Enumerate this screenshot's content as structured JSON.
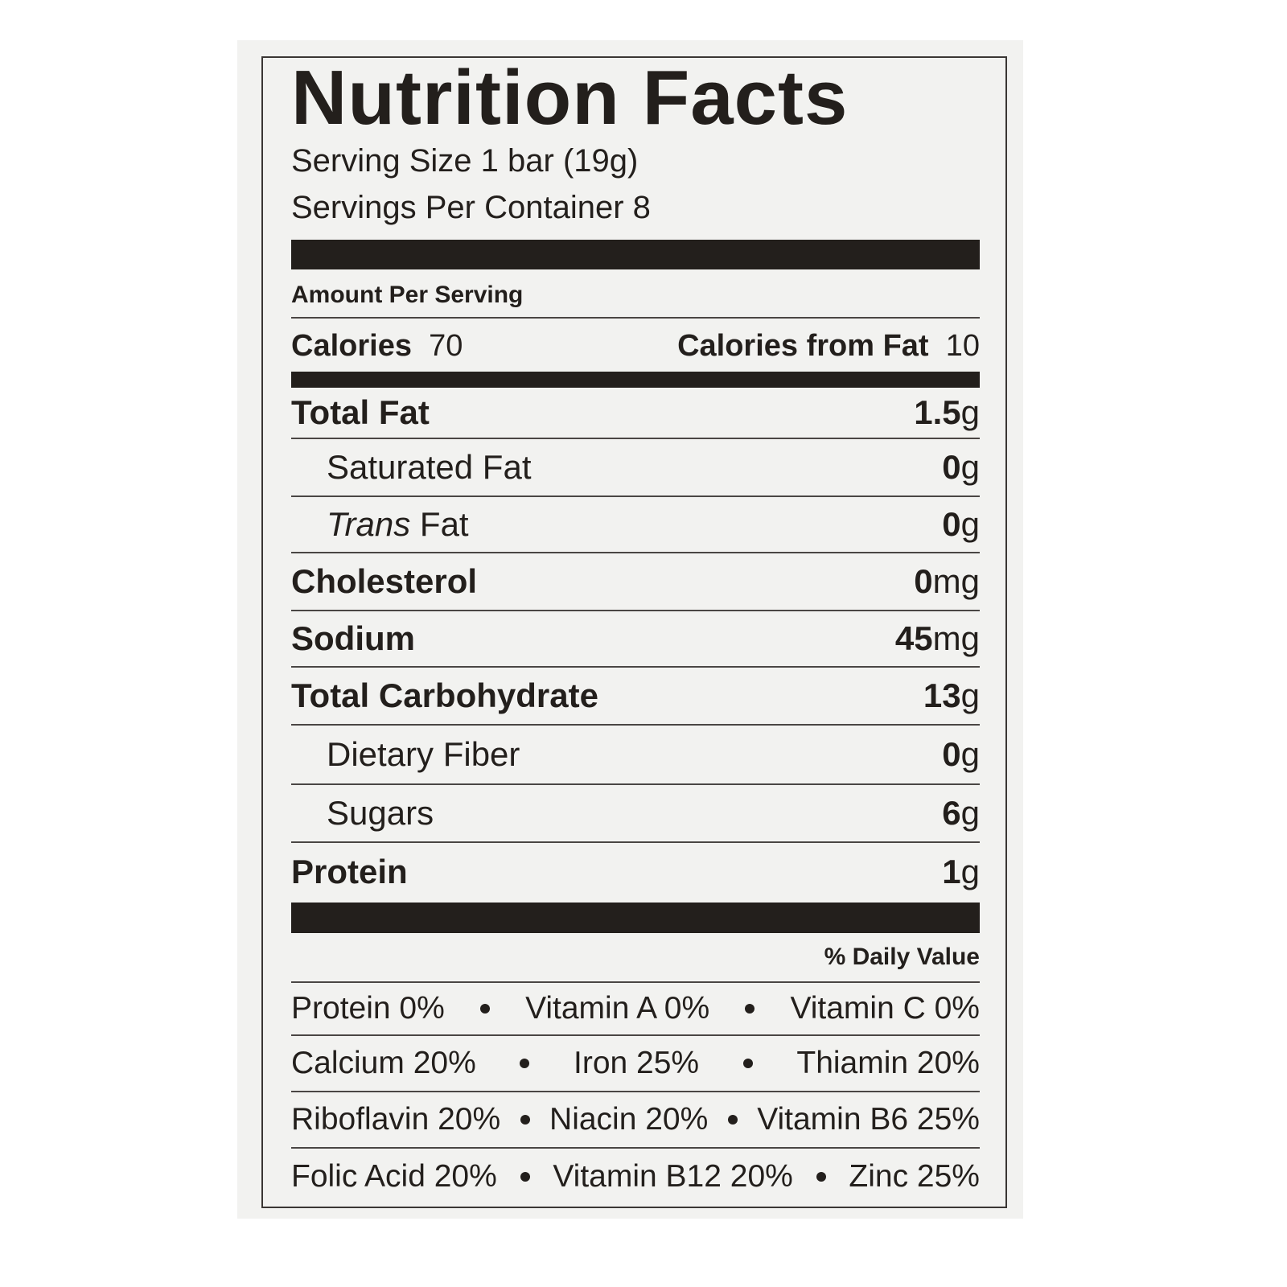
{
  "header": {
    "title": "Nutrition Facts",
    "serving_size": "Serving Size 1 bar (19g)",
    "servings_per_container": "Servings Per Container 8"
  },
  "amount_per_serving": "Amount Per Serving",
  "calories": {
    "label": "Calories",
    "value": "70"
  },
  "calories_from_fat": {
    "label": "Calories from Fat",
    "value": "10"
  },
  "nutrients": [
    {
      "label": "Total Fat",
      "amount": "1.5",
      "unit": "g"
    },
    {
      "label": "Saturated Fat",
      "amount": "0",
      "unit": "g"
    },
    {
      "label_italic": "Trans",
      "label": "Fat",
      "amount": "0",
      "unit": "g"
    },
    {
      "label": "Cholesterol",
      "amount": "0",
      "unit": "mg"
    },
    {
      "label": "Sodium",
      "amount": "45",
      "unit": "mg"
    },
    {
      "label": "Total Carbohydrate",
      "amount": "13",
      "unit": "g"
    },
    {
      "label": "Dietary Fiber",
      "amount": "0",
      "unit": "g"
    },
    {
      "label": "Sugars",
      "amount": "6",
      "unit": "g"
    },
    {
      "label": "Protein",
      "amount": "1",
      "unit": "g"
    }
  ],
  "daily_value_header": "% Daily Value",
  "vitamins": [
    [
      "Protein 0%",
      "Vitamin A 0%",
      "Vitamin C 0%"
    ],
    [
      "Calcium 20%",
      "Iron 25%",
      "Thiamin 20%"
    ],
    [
      "Riboflavin 20%",
      "Niacin 20%",
      "Vitamin B6 25%"
    ],
    [
      "Folic Acid 20%",
      "Vitamin B12 20%",
      "Zinc 25%"
    ]
  ]
}
